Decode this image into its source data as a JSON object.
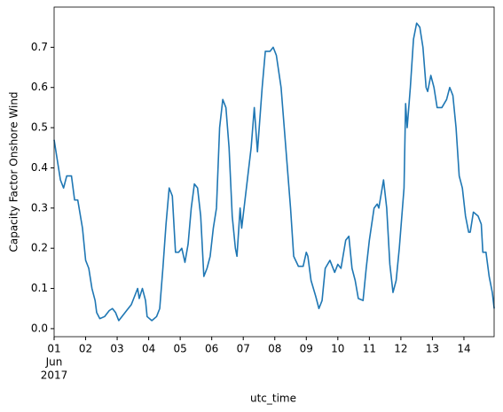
{
  "chart_data": {
    "type": "line",
    "ylabel": "Capacity Factor Onshore Wind",
    "xlabel": "utc_time",
    "x": [
      1.0,
      1.2,
      1.3,
      1.4,
      1.55,
      1.65,
      1.75,
      1.9,
      2.0,
      2.1,
      2.2,
      2.3,
      2.35,
      2.45,
      2.6,
      2.75,
      2.85,
      2.95,
      3.05,
      3.15,
      3.3,
      3.45,
      3.55,
      3.65,
      3.7,
      3.8,
      3.9,
      3.95,
      4.1,
      4.25,
      4.35,
      4.45,
      4.55,
      4.65,
      4.75,
      4.85,
      4.95,
      5.05,
      5.15,
      5.25,
      5.35,
      5.45,
      5.55,
      5.65,
      5.75,
      5.85,
      5.95,
      6.05,
      6.15,
      6.25,
      6.35,
      6.45,
      6.55,
      6.65,
      6.75,
      6.8,
      6.9,
      6.95,
      7.1,
      7.25,
      7.35,
      7.45,
      7.6,
      7.7,
      7.85,
      7.95,
      8.05,
      8.2,
      8.35,
      8.5,
      8.6,
      8.75,
      8.9,
      9.0,
      9.05,
      9.15,
      9.3,
      9.4,
      9.5,
      9.6,
      9.75,
      9.9,
      10.0,
      10.1,
      10.25,
      10.35,
      10.45,
      10.55,
      10.65,
      10.8,
      10.9,
      11.0,
      11.15,
      11.25,
      11.3,
      11.45,
      11.55,
      11.65,
      11.75,
      11.85,
      11.95,
      12.1,
      12.15,
      12.2,
      12.3,
      12.4,
      12.5,
      12.6,
      12.7,
      12.8,
      12.85,
      12.95,
      13.05,
      13.15,
      13.3,
      13.45,
      13.55,
      13.65,
      13.75,
      13.85,
      13.95,
      14.05,
      14.15,
      14.2,
      14.3,
      14.45,
      14.55,
      14.6,
      14.7,
      14.8,
      14.9,
      14.96
    ],
    "series": [
      {
        "name": "Capacity Factor Onshore Wind",
        "color": "#1f77b4",
        "values": [
          0.47,
          0.37,
          0.35,
          0.38,
          0.38,
          0.32,
          0.32,
          0.25,
          0.17,
          0.15,
          0.1,
          0.07,
          0.04,
          0.025,
          0.03,
          0.045,
          0.05,
          0.04,
          0.02,
          0.03,
          0.045,
          0.06,
          0.08,
          0.1,
          0.075,
          0.1,
          0.07,
          0.03,
          0.02,
          0.03,
          0.05,
          0.15,
          0.26,
          0.35,
          0.33,
          0.19,
          0.19,
          0.2,
          0.165,
          0.21,
          0.3,
          0.36,
          0.35,
          0.28,
          0.13,
          0.15,
          0.18,
          0.25,
          0.3,
          0.5,
          0.57,
          0.55,
          0.45,
          0.28,
          0.2,
          0.18,
          0.3,
          0.25,
          0.35,
          0.45,
          0.55,
          0.44,
          0.6,
          0.69,
          0.69,
          0.7,
          0.68,
          0.6,
          0.45,
          0.3,
          0.18,
          0.155,
          0.155,
          0.19,
          0.18,
          0.12,
          0.08,
          0.05,
          0.07,
          0.15,
          0.17,
          0.14,
          0.16,
          0.15,
          0.22,
          0.23,
          0.15,
          0.12,
          0.075,
          0.07,
          0.15,
          0.22,
          0.3,
          0.31,
          0.3,
          0.37,
          0.3,
          0.16,
          0.09,
          0.12,
          0.2,
          0.35,
          0.56,
          0.5,
          0.6,
          0.72,
          0.76,
          0.75,
          0.7,
          0.6,
          0.59,
          0.63,
          0.6,
          0.55,
          0.55,
          0.57,
          0.6,
          0.58,
          0.5,
          0.38,
          0.35,
          0.28,
          0.24,
          0.24,
          0.29,
          0.28,
          0.26,
          0.19,
          0.19,
          0.13,
          0.09,
          0.05
        ]
      }
    ],
    "xlim": [
      1,
      14.958
    ],
    "xticks": [
      {
        "value": 1,
        "label": "01"
      },
      {
        "value": 2,
        "label": "02"
      },
      {
        "value": 3,
        "label": "03"
      },
      {
        "value": 4,
        "label": "04"
      },
      {
        "value": 5,
        "label": "05"
      },
      {
        "value": 6,
        "label": "06"
      },
      {
        "value": 7,
        "label": "07"
      },
      {
        "value": 8,
        "label": "08"
      },
      {
        "value": 9,
        "label": "09"
      },
      {
        "value": 10,
        "label": "10"
      },
      {
        "value": 11,
        "label": "11"
      },
      {
        "value": 12,
        "label": "12"
      },
      {
        "value": 13,
        "label": "13"
      },
      {
        "value": 14,
        "label": "14"
      }
    ],
    "xtick_sublabels": [
      "Jun",
      "2017"
    ],
    "ylim": [
      -0.02,
      0.8
    ],
    "yticks": [
      {
        "value": 0,
        "label": "0.0"
      },
      {
        "value": 0.1,
        "label": "0.1"
      },
      {
        "value": 0.2,
        "label": "0.2"
      },
      {
        "value": 0.3,
        "label": "0.3"
      },
      {
        "value": 0.4,
        "label": "0.4"
      },
      {
        "value": 0.5,
        "label": "0.5"
      },
      {
        "value": 0.6,
        "label": "0.6"
      },
      {
        "value": 0.7,
        "label": "0.7"
      }
    ],
    "grid": false
  }
}
